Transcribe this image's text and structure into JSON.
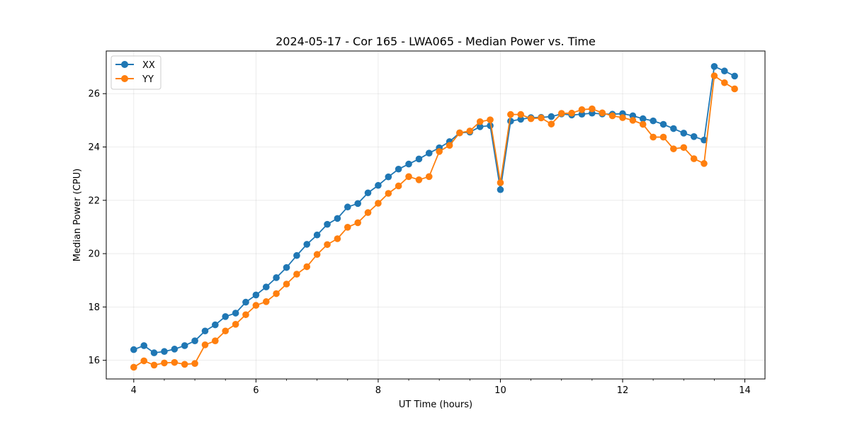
{
  "chart_data": {
    "type": "line",
    "title": "2024-05-17 - Cor 165 - LWA065 - Median Power vs. Time",
    "xlabel": "UT Time (hours)",
    "ylabel": "Median Power (CPU)",
    "xlim": [
      3.55,
      14.33
    ],
    "ylim": [
      15.3,
      27.6
    ],
    "xticks": [
      4,
      6,
      8,
      10,
      12,
      14
    ],
    "xtick_labels": [
      "4",
      "6",
      "8",
      "10",
      "12",
      "14"
    ],
    "yticks": [
      16,
      18,
      20,
      22,
      24,
      26
    ],
    "ytick_labels": [
      "16",
      "18",
      "20",
      "22",
      "24",
      "26"
    ],
    "grid": true,
    "legend_position": "upper-left",
    "x": [
      4.0,
      4.167,
      4.333,
      4.5,
      4.667,
      4.833,
      5.0,
      5.167,
      5.333,
      5.5,
      5.667,
      5.833,
      6.0,
      6.167,
      6.333,
      6.5,
      6.667,
      6.833,
      7.0,
      7.167,
      7.333,
      7.5,
      7.667,
      7.833,
      8.0,
      8.167,
      8.333,
      8.5,
      8.667,
      8.833,
      9.0,
      9.167,
      9.333,
      9.5,
      9.667,
      9.833,
      10.0,
      10.167,
      10.333,
      10.5,
      10.667,
      10.833,
      11.0,
      11.167,
      11.333,
      11.5,
      11.667,
      11.833,
      12.0,
      12.167,
      12.333,
      12.5,
      12.667,
      12.833,
      13.0,
      13.167,
      13.333,
      13.5,
      13.667,
      13.833
    ],
    "series": [
      {
        "name": "XX",
        "color": "#1f77b4",
        "values": [
          16.4,
          16.55,
          16.28,
          16.33,
          16.42,
          16.55,
          16.73,
          17.1,
          17.33,
          17.64,
          17.77,
          18.18,
          18.45,
          18.75,
          19.1,
          19.48,
          19.93,
          20.35,
          20.7,
          21.1,
          21.32,
          21.75,
          21.88,
          22.28,
          22.56,
          22.88,
          23.17,
          23.36,
          23.55,
          23.77,
          23.97,
          24.2,
          24.53,
          24.56,
          24.76,
          24.8,
          22.4,
          24.97,
          25.04,
          25.1,
          25.11,
          25.14,
          25.24,
          25.2,
          25.23,
          25.27,
          25.24,
          25.23,
          25.25,
          25.17,
          25.06,
          24.98,
          24.85,
          24.69,
          24.52,
          24.39,
          24.26,
          27.02,
          26.85,
          26.66
        ]
      },
      {
        "name": "YY",
        "color": "#ff7f0e",
        "values": [
          15.74,
          15.98,
          15.82,
          15.9,
          15.92,
          15.85,
          15.88,
          16.58,
          16.73,
          17.1,
          17.35,
          17.71,
          18.06,
          18.2,
          18.5,
          18.86,
          19.23,
          19.51,
          19.97,
          20.34,
          20.56,
          20.99,
          21.16,
          21.54,
          21.89,
          22.26,
          22.54,
          22.89,
          22.77,
          22.89,
          23.83,
          24.06,
          24.53,
          24.6,
          24.95,
          25.02,
          22.66,
          25.22,
          25.22,
          25.06,
          25.09,
          24.86,
          25.26,
          25.27,
          25.4,
          25.43,
          25.28,
          25.17,
          25.1,
          25.0,
          24.85,
          24.37,
          24.37,
          23.93,
          23.98,
          23.56,
          23.38,
          26.67,
          26.41,
          26.18
        ]
      }
    ]
  }
}
